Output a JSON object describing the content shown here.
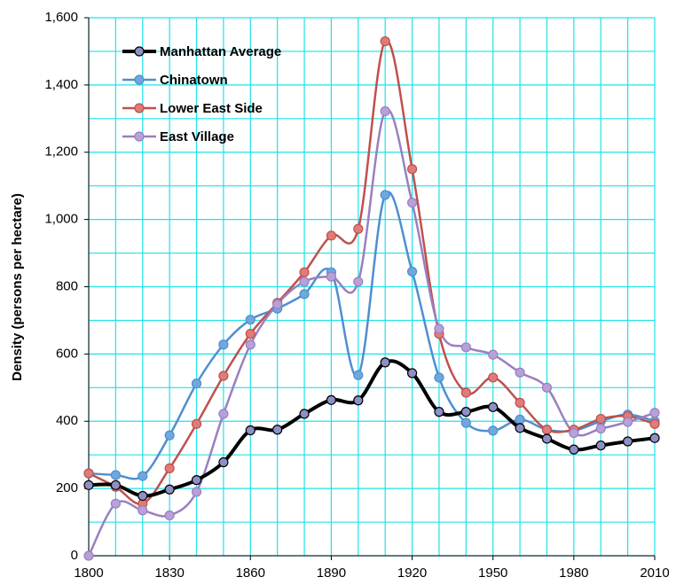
{
  "chart_data": {
    "type": "line",
    "y_label": "Density (persons per hectare)",
    "x": [
      1800,
      1810,
      1820,
      1830,
      1840,
      1850,
      1860,
      1870,
      1880,
      1890,
      1900,
      1910,
      1920,
      1930,
      1940,
      1950,
      1960,
      1970,
      1980,
      1990,
      2000,
      2010
    ],
    "series": [
      {
        "name": "Manhattan Average",
        "color": "#000000",
        "marker_color": "#8f8fc8",
        "values": [
          210,
          210,
          178,
          197,
          225,
          278,
          373,
          375,
          422,
          463,
          462,
          575,
          543,
          428,
          428,
          442,
          380,
          348,
          316,
          328,
          340,
          350
        ]
      },
      {
        "name": "Chinatown",
        "color": "#4f8fd0",
        "marker_color": "#6fa8dc",
        "values": [
          245,
          240,
          237,
          358,
          512,
          628,
          702,
          735,
          778,
          843,
          537,
          1073,
          845,
          530,
          395,
          372,
          405,
          375,
          372,
          400,
          420,
          400
        ]
      },
      {
        "name": "Lower East Side",
        "color": "#c0504d",
        "marker_color": "#e07b78",
        "values": [
          245,
          205,
          155,
          260,
          392,
          535,
          660,
          752,
          843,
          952,
          972,
          1530,
          1150,
          660,
          485,
          530,
          455,
          375,
          375,
          407,
          415,
          392
        ]
      },
      {
        "name": "East Village",
        "color": "#9b7fbf",
        "marker_color": "#b8a0d8",
        "values": [
          0,
          155,
          135,
          120,
          190,
          422,
          628,
          748,
          815,
          830,
          815,
          1322,
          1050,
          675,
          620,
          598,
          545,
          500,
          365,
          378,
          398,
          425
        ]
      }
    ],
    "xlim": [
      1800,
      2010
    ],
    "xticks": [
      1800,
      1830,
      1860,
      1890,
      1920,
      1950,
      1980,
      2010
    ],
    "minor_xticks": [
      1800,
      1810,
      1820,
      1830,
      1840,
      1850,
      1860,
      1870,
      1880,
      1890,
      1900,
      1910,
      1920,
      1930,
      1940,
      1950,
      1960,
      1970,
      1980,
      1990,
      2000,
      2010
    ],
    "ylim": [
      0,
      1600
    ],
    "yticks": [
      0,
      200,
      400,
      600,
      800,
      {
        "value": 1000,
        "label": "1,000"
      },
      {
        "value": 1200,
        "label": "1,200"
      },
      {
        "value": 1400,
        "label": "1,400"
      },
      {
        "value": 1600,
        "label": "1,600"
      }
    ],
    "minor_yticks": [
      0,
      100,
      200,
      300,
      400,
      500,
      600,
      700,
      800,
      900,
      1000,
      1100,
      1200,
      1300,
      1400,
      1500,
      1600
    ],
    "grid": true,
    "grid_color": "#1ee3e8",
    "legend": "upper-left",
    "smooth": true
  }
}
